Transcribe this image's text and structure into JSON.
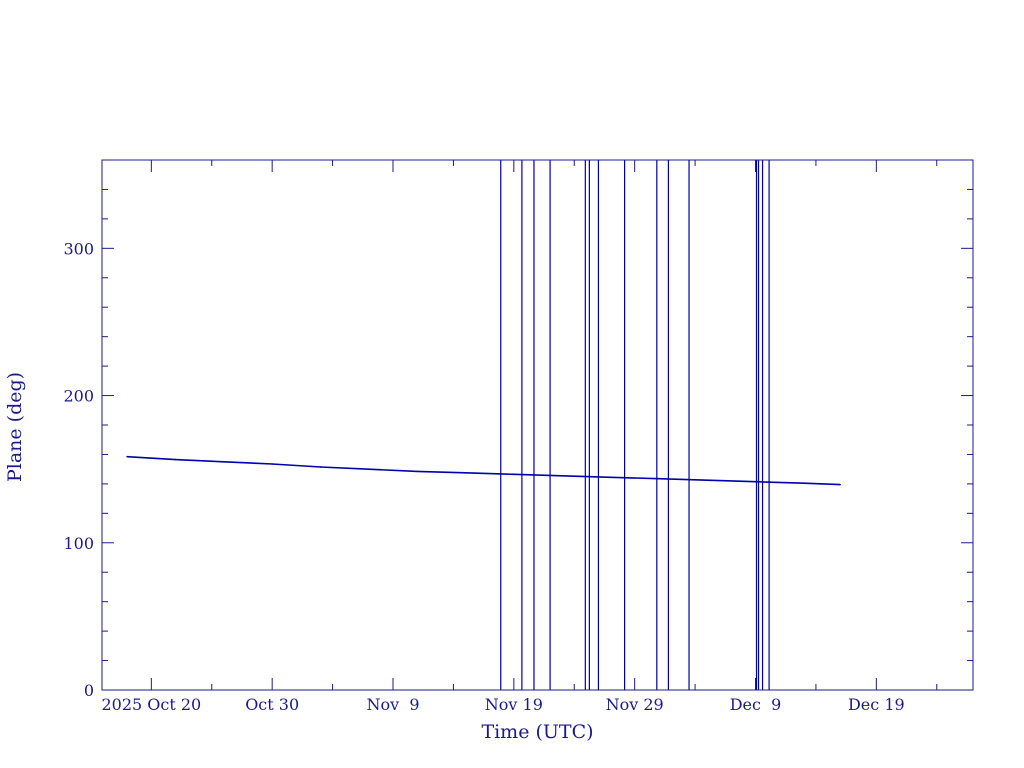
{
  "colors": {
    "axis": "#1a1a8c",
    "series": "#0000aa",
    "background": "#ffffff"
  },
  "chart_data": {
    "type": "line",
    "title": "",
    "xlabel": "Time (UTC)",
    "ylabel": "Plane (deg)",
    "xlim": [
      "2025-10-15T22:00:00Z",
      "2025-12-27T00:00:00Z"
    ],
    "ylim": [
      0,
      360
    ],
    "grid": false,
    "x_ticks": [
      {
        "date": "2025-10-20",
        "label": "2025 Oct 20"
      },
      {
        "date": "2025-10-30",
        "label": "Oct 30"
      },
      {
        "date": "2025-11-09",
        "label": "Nov  9"
      },
      {
        "date": "2025-11-19",
        "label": "Nov 19"
      },
      {
        "date": "2025-11-29",
        "label": "Nov 29"
      },
      {
        "date": "2025-12-09",
        "label": "Dec  9"
      },
      {
        "date": "2025-12-19",
        "label": "Dec 19"
      }
    ],
    "y_ticks": [
      {
        "value": 0,
        "label": "0"
      },
      {
        "value": 100,
        "label": "100"
      },
      {
        "value": 200,
        "label": "200"
      },
      {
        "value": 300,
        "label": "300"
      }
    ],
    "series": [
      {
        "points": [
          {
            "x": "2025-10-18",
            "y": 158.5
          },
          {
            "x": "2025-10-22",
            "y": 156.5
          },
          {
            "x": "2025-10-26",
            "y": 155.0
          },
          {
            "x": "2025-10-30",
            "y": 153.5
          },
          {
            "x": "2025-11-03",
            "y": 151.5
          },
          {
            "x": "2025-11-07",
            "y": 150.0
          },
          {
            "x": "2025-11-11",
            "y": 148.5
          },
          {
            "x": "2025-11-15",
            "y": 147.5
          },
          {
            "x": "2025-11-19",
            "y": 146.5
          },
          {
            "x": "2025-11-23",
            "y": 145.5
          },
          {
            "x": "2025-11-27",
            "y": 144.5
          },
          {
            "x": "2025-12-01",
            "y": 143.5
          },
          {
            "x": "2025-12-05",
            "y": 142.5
          },
          {
            "x": "2025-12-09",
            "y": 141.5
          },
          {
            "x": "2025-12-13",
            "y": 140.5
          },
          {
            "x": "2025-12-16",
            "y": 139.5
          }
        ]
      }
    ],
    "vertical_markers": [
      "2025-11-17T22:00:00Z",
      "2025-11-19T16:00:00Z",
      "2025-11-20T16:00:00Z",
      "2025-11-22T00:00:00Z",
      "2025-11-24T22:00:00Z",
      "2025-11-25T06:00:00Z",
      "2025-11-26T00:00:00Z",
      "2025-11-28T04:00:00Z",
      "2025-11-30T20:00:00Z",
      "2025-12-01T19:00:00Z",
      "2025-12-03T12:00:00Z",
      "2025-12-09T02:00:00Z",
      "2025-12-09T06:00:00Z",
      "2025-12-09T14:00:00Z",
      "2025-12-10T03:00:00Z"
    ]
  }
}
